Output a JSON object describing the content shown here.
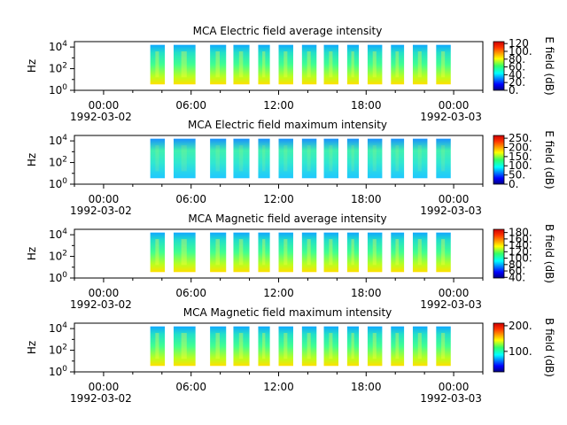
{
  "chart_data": [
    {
      "type": "heatmap",
      "title": "MCA  Electric field average intensity",
      "ylabel": "Hz",
      "y_scale": "log",
      "ylim_exp": [
        0,
        4.5
      ],
      "ytick_exps": [
        0,
        2,
        4
      ],
      "x_range_hours": [
        -2,
        26
      ],
      "x_ticks": [
        {
          "hour": 0,
          "label": "00:00",
          "date": "1992-03-02"
        },
        {
          "hour": 6,
          "label": "06:00",
          "date": ""
        },
        {
          "hour": 12,
          "label": "12:00",
          "date": ""
        },
        {
          "hour": 18,
          "label": "18:00",
          "date": ""
        },
        {
          "hour": 24,
          "label": "00:00",
          "date": "1992-03-03"
        }
      ],
      "colorbar": {
        "label": "E field (dB)",
        "range": [
          0,
          125
        ],
        "ticks": [
          "0.",
          "20.",
          "40.",
          "60.",
          "80.",
          "100.",
          "120"
        ],
        "tick_values": [
          0,
          20,
          40,
          60,
          80,
          100,
          120
        ]
      },
      "passes": [
        [
          3.2,
          4.2
        ],
        [
          4.8,
          6.3
        ],
        [
          7.3,
          8.4
        ],
        [
          8.9,
          10.0
        ],
        [
          10.6,
          11.4
        ],
        [
          12.0,
          13.0
        ],
        [
          13.6,
          14.6
        ],
        [
          15.1,
          16.1
        ],
        [
          16.7,
          17.5
        ],
        [
          18.1,
          19.1
        ],
        [
          19.7,
          20.6
        ],
        [
          21.2,
          22.2
        ],
        [
          22.8,
          23.8
        ]
      ],
      "intensity_level": "mid"
    },
    {
      "type": "heatmap",
      "title": "MCA  Electric field maximum intensity",
      "ylabel": "Hz",
      "y_scale": "log",
      "ylim_exp": [
        0,
        4.5
      ],
      "ytick_exps": [
        0,
        2,
        4
      ],
      "x_range_hours": [
        -2,
        26
      ],
      "x_ticks": [
        {
          "hour": 0,
          "label": "00:00",
          "date": "1992-03-02"
        },
        {
          "hour": 6,
          "label": "06:00",
          "date": ""
        },
        {
          "hour": 12,
          "label": "12:00",
          "date": ""
        },
        {
          "hour": 18,
          "label": "18:00",
          "date": ""
        },
        {
          "hour": 24,
          "label": "00:00",
          "date": "1992-03-03"
        }
      ],
      "colorbar": {
        "label": "E field (dB)",
        "range": [
          0,
          265
        ],
        "ticks": [
          "0.",
          "50.",
          "100.",
          "150.",
          "200.",
          "250."
        ],
        "tick_values": [
          0,
          50,
          100,
          150,
          200,
          250
        ]
      },
      "passes": [
        [
          3.2,
          4.2
        ],
        [
          4.8,
          6.3
        ],
        [
          7.3,
          8.4
        ],
        [
          8.9,
          10.0
        ],
        [
          10.6,
          11.4
        ],
        [
          12.0,
          13.0
        ],
        [
          13.6,
          14.6
        ],
        [
          15.1,
          16.1
        ],
        [
          16.7,
          17.5
        ],
        [
          18.1,
          19.1
        ],
        [
          19.7,
          20.6
        ],
        [
          21.2,
          22.2
        ],
        [
          22.8,
          23.8
        ]
      ],
      "intensity_level": "low"
    },
    {
      "type": "heatmap",
      "title": "MCA  Magnetic field average intensity",
      "ylabel": "Hz",
      "y_scale": "log",
      "ylim_exp": [
        0,
        4.5
      ],
      "ytick_exps": [
        0,
        2,
        4
      ],
      "x_range_hours": [
        -2,
        26
      ],
      "x_ticks": [
        {
          "hour": 0,
          "label": "00:00",
          "date": "1992-03-02"
        },
        {
          "hour": 6,
          "label": "06:00",
          "date": ""
        },
        {
          "hour": 12,
          "label": "12:00",
          "date": ""
        },
        {
          "hour": 18,
          "label": "18:00",
          "date": ""
        },
        {
          "hour": 24,
          "label": "00:00",
          "date": "1992-03-03"
        }
      ],
      "colorbar": {
        "label": "B field (dB)",
        "range": [
          38,
          190
        ],
        "ticks": [
          "40.",
          "60.",
          "80.",
          "100.",
          "120.",
          "140.",
          "160.",
          "180."
        ],
        "tick_values": [
          40,
          60,
          80,
          100,
          120,
          140,
          160,
          180
        ]
      },
      "passes": [
        [
          3.2,
          4.2
        ],
        [
          4.8,
          6.3
        ],
        [
          7.3,
          8.4
        ],
        [
          8.9,
          10.0
        ],
        [
          10.6,
          11.4
        ],
        [
          12.0,
          13.0
        ],
        [
          13.6,
          14.6
        ],
        [
          15.1,
          16.1
        ],
        [
          16.7,
          17.5
        ],
        [
          18.1,
          19.1
        ],
        [
          19.7,
          20.6
        ],
        [
          21.2,
          22.2
        ],
        [
          22.8,
          23.8
        ]
      ],
      "intensity_level": "mid"
    },
    {
      "type": "heatmap",
      "title": "MCA  Magnetic field maximum intensity",
      "ylabel": "Hz",
      "y_scale": "log",
      "ylim_exp": [
        0,
        4.5
      ],
      "ytick_exps": [
        0,
        2,
        4
      ],
      "x_range_hours": [
        -2,
        26
      ],
      "x_ticks": [
        {
          "hour": 0,
          "label": "00:00",
          "date": "1992-03-02"
        },
        {
          "hour": 6,
          "label": "06:00",
          "date": ""
        },
        {
          "hour": 12,
          "label": "12:00",
          "date": ""
        },
        {
          "hour": 18,
          "label": "18:00",
          "date": ""
        },
        {
          "hour": 24,
          "label": "00:00",
          "date": "1992-03-03"
        }
      ],
      "colorbar": {
        "label": "B field (dB)",
        "range": [
          20,
          210
        ],
        "ticks": [
          "100.",
          "200."
        ],
        "tick_values": [
          100,
          200
        ]
      },
      "passes": [
        [
          3.2,
          4.2
        ],
        [
          4.8,
          6.3
        ],
        [
          7.3,
          8.4
        ],
        [
          8.9,
          10.0
        ],
        [
          10.6,
          11.4
        ],
        [
          12.0,
          13.0
        ],
        [
          13.6,
          14.6
        ],
        [
          15.1,
          16.1
        ],
        [
          16.7,
          17.5
        ],
        [
          18.1,
          19.1
        ],
        [
          19.7,
          20.6
        ],
        [
          21.2,
          22.2
        ],
        [
          22.8,
          23.8
        ]
      ],
      "intensity_level": "mid"
    }
  ],
  "colors": {
    "axis": "#000000",
    "background": "#ffffff"
  }
}
